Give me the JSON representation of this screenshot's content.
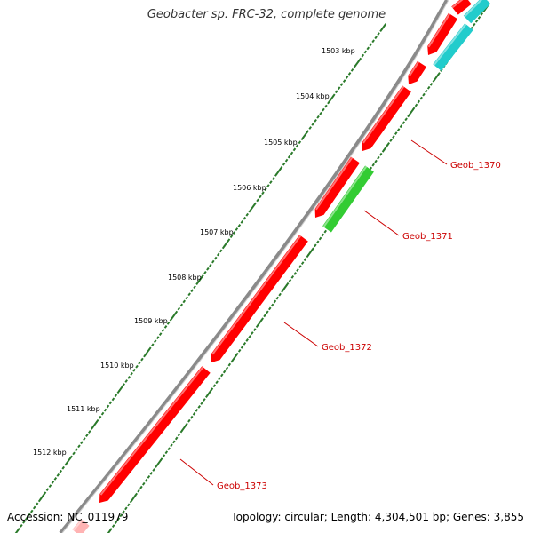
{
  "title": "Geobacter sp. FRC-32, complete genome",
  "accession_text": "Accession: NC_011979",
  "stats_text": "Topology: circular; Length: 4,304,501 bp; Genes: 3,855",
  "colors": {
    "backbone": "#8a8a8a",
    "forward_gene": "#ff0000",
    "cds_green": "#33cc33",
    "cds_cyan": "#22cccc",
    "tick": "#2a7a2a",
    "label": "#cc0000"
  },
  "ruler": [
    {
      "label": "1503 kbp"
    },
    {
      "label": "1504 kbp"
    },
    {
      "label": "1505 kbp"
    },
    {
      "label": "1506 kbp"
    },
    {
      "label": "1507 kbp"
    },
    {
      "label": "1508 kbp"
    },
    {
      "label": "1509 kbp"
    },
    {
      "label": "1510 kbp"
    },
    {
      "label": "1511 kbp"
    },
    {
      "label": "1512 kbp"
    }
  ],
  "genes": [
    {
      "name": "Geob_1370"
    },
    {
      "name": "Geob_1371"
    },
    {
      "name": "Geob_1372"
    },
    {
      "name": "Geob_1373"
    }
  ]
}
